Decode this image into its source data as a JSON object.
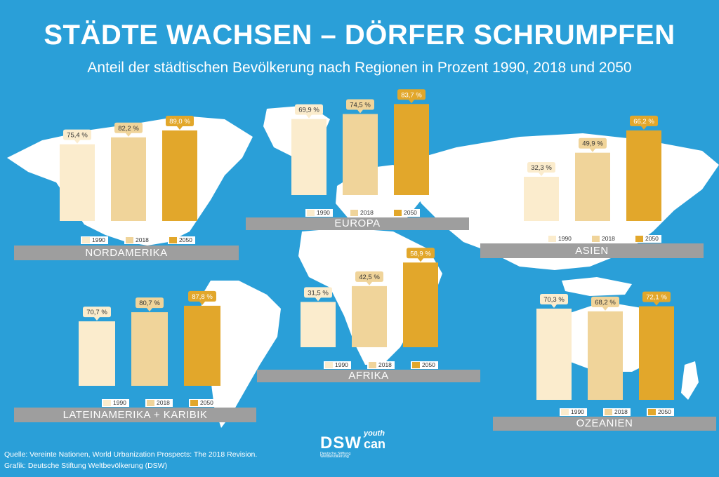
{
  "title": "STÄDTE WACHSEN – DÖRFER SCHRUMPFEN",
  "subtitle": "Anteil der städtischen Bevölkerung nach Regionen in Prozent 1990, 2018 und 2050",
  "colors": {
    "background": "#2a9fd8",
    "land": "#ffffff",
    "year_1990": "#fbeccd",
    "year_2018": "#f0d49a",
    "year_2050": "#e2a72b",
    "region_bar": "#9e9e9e"
  },
  "legend": {
    "y1990": "1990",
    "y2018": "2018",
    "y2050": "2050"
  },
  "chart_data": [
    {
      "type": "bar",
      "region": "NORDAMERIKA",
      "categories": [
        "1990",
        "2018",
        "2050"
      ],
      "values": [
        75.4,
        82.2,
        89.0
      ],
      "labels": [
        "75,4 %",
        "82,2 %",
        "89,0 %"
      ]
    },
    {
      "type": "bar",
      "region": "EUROPA",
      "categories": [
        "1990",
        "2018",
        "2050"
      ],
      "values": [
        69.9,
        74.5,
        83.7
      ],
      "labels": [
        "69,9 %",
        "74,5 %",
        "83,7 %"
      ]
    },
    {
      "type": "bar",
      "region": "ASIEN",
      "categories": [
        "1990",
        "2018",
        "2050"
      ],
      "values": [
        32.3,
        49.9,
        66.2
      ],
      "labels": [
        "32,3 %",
        "49,9 %",
        "66,2 %"
      ]
    },
    {
      "type": "bar",
      "region": "LATEINAMERIKA + KARIBIK",
      "categories": [
        "1990",
        "2018",
        "2050"
      ],
      "values": [
        70.7,
        80.7,
        87.8
      ],
      "labels": [
        "70,7 %",
        "80,7 %",
        "87,8 %"
      ]
    },
    {
      "type": "bar",
      "region": "AFRIKA",
      "categories": [
        "1990",
        "2018",
        "2050"
      ],
      "values": [
        31.5,
        42.5,
        58.9
      ],
      "labels": [
        "31,5 %",
        "42,5 %",
        "58,9 %"
      ]
    },
    {
      "type": "bar",
      "region": "OZEANIEN",
      "categories": [
        "1990",
        "2018",
        "2050"
      ],
      "values": [
        70.3,
        68.2,
        72.1
      ],
      "labels": [
        "70,3 %",
        "68,2 %",
        "72,1 %"
      ]
    }
  ],
  "footer": {
    "source": "Quelle: Vereinte Nationen, World Urbanization Prospects: The 2018 Revision.",
    "graphic": "Grafik: Deutsche Stiftung Weltbevölkerung (DSW)"
  },
  "logo": {
    "dsw": "DSW",
    "dsw_sub_1": "Deutsche Stiftung",
    "dsw_sub_2": "Weltbevölkerung",
    "youth": "youth",
    "can": "can"
  }
}
